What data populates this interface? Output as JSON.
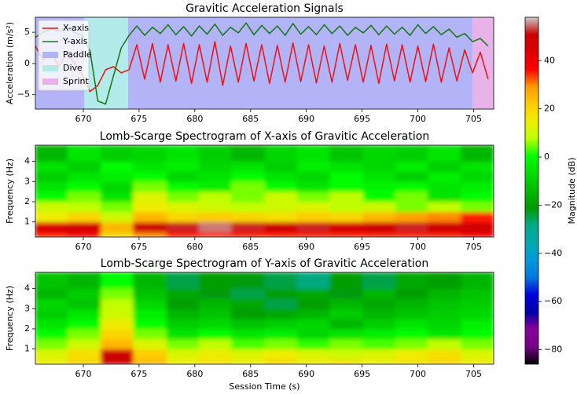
{
  "chart_data": [
    {
      "type": "line",
      "title": "Gravitic Acceleration Signals",
      "ylabel": "Acceleration (m/s²)",
      "x": [
        665.7,
        666.4,
        667.1,
        667.8,
        668.5,
        669.2,
        669.9,
        670.6,
        671.3,
        672.0,
        672.7,
        673.4,
        674.1,
        674.8,
        675.5,
        676.2,
        676.9,
        677.6,
        678.3,
        679.0,
        679.7,
        680.4,
        681.1,
        681.8,
        682.5,
        683.2,
        683.9,
        684.6,
        685.3,
        686.0,
        686.7,
        687.4,
        688.1,
        688.8,
        689.5,
        690.2,
        690.9,
        691.6,
        692.3,
        693.0,
        693.7,
        694.4,
        695.1,
        695.8,
        696.5,
        697.2,
        697.9,
        698.6,
        699.3,
        700.0,
        700.7,
        701.4,
        702.1,
        702.8,
        703.5,
        704.2,
        704.9,
        705.6,
        706.3
      ],
      "series": [
        {
          "name": "X-axis",
          "color": "#ee1111",
          "values": [
            2.8,
            0.5,
            1.8,
            -0.5,
            1.5,
            0.2,
            -1.8,
            -4.5,
            -3.5,
            -1.0,
            -0.5,
            -1.5,
            -1.0,
            3.0,
            -2.5,
            3.2,
            -3.0,
            3.0,
            -2.8,
            3.2,
            -3.2,
            3.0,
            -3.0,
            3.5,
            -3.5,
            2.8,
            -3.0,
            3.2,
            -2.8,
            3.0,
            -3.2,
            2.9,
            -3.0,
            3.3,
            -2.9,
            3.0,
            -3.1,
            2.8,
            -3.0,
            3.2,
            -2.7,
            3.0,
            -3.0,
            2.9,
            -3.2,
            3.1,
            -2.8,
            3.0,
            -3.0,
            2.8,
            -2.9,
            3.1,
            -3.0,
            2.5,
            -2.8,
            2.2,
            -1.5,
            1.8,
            -2.5
          ]
        },
        {
          "name": "Y-axis",
          "color": "#117711",
          "values": [
            4.2,
            5.0,
            5.5,
            5.2,
            5.8,
            5.0,
            4.5,
            2.0,
            -6.0,
            -6.5,
            -2.0,
            2.5,
            4.5,
            6.0,
            4.5,
            5.8,
            4.8,
            6.2,
            4.6,
            5.9,
            4.4,
            6.0,
            4.7,
            6.3,
            4.5,
            5.8,
            4.9,
            6.5,
            4.6,
            6.1,
            4.8,
            6.0,
            4.5,
            6.4,
            4.7,
            5.9,
            4.6,
            6.2,
            4.8,
            6.0,
            4.5,
            5.8,
            4.9,
            6.1,
            4.6,
            6.0,
            4.7,
            5.8,
            4.5,
            6.2,
            4.8,
            5.9,
            4.6,
            5.5,
            4.2,
            4.8,
            3.5,
            4.0,
            2.8
          ]
        }
      ],
      "regions": [
        {
          "name": "Paddle",
          "color": "#b3b3f8",
          "intervals": [
            [
              665.7,
              670.1
            ],
            [
              674.0,
              704.9
            ]
          ]
        },
        {
          "name": "Dive",
          "color": "#b3eaea",
          "intervals": [
            [
              670.1,
              674.0
            ]
          ]
        },
        {
          "name": "Sprint",
          "color": "#e8b3e8",
          "intervals": [
            [
              704.9,
              706.8
            ]
          ]
        }
      ],
      "legend": "upper left",
      "xlim": [
        665.7,
        706.8
      ],
      "ylim": [
        -7.3,
        7.4
      ],
      "xticks": [
        670,
        675,
        680,
        685,
        690,
        695,
        700,
        705
      ],
      "yticks": [
        {
          "value": -5,
          "label": "−5"
        },
        0,
        5
      ]
    },
    {
      "type": "heatmap",
      "title": "Lomb-Scarge Spectrogram of X-axis of Gravitic Acceleration",
      "ylabel": "Frequency (Hz)",
      "xbins": [
        665.7,
        668.6,
        671.6,
        674.5,
        677.5,
        680.4,
        683.3,
        686.3,
        689.2,
        692.1,
        695.1,
        698.0,
        700.9,
        703.9,
        706.8
      ],
      "ybins": [
        0.25,
        0.5,
        1.0,
        1.5,
        2.0,
        2.5,
        3.0,
        3.5,
        4.0,
        4.8
      ],
      "z": [
        [
          35,
          38,
          20,
          30,
          35,
          35,
          35,
          35,
          35,
          35,
          35,
          35,
          35,
          40
        ],
        [
          45,
          48,
          25,
          50,
          52,
          55,
          52,
          50,
          52,
          48,
          50,
          52,
          50,
          48
        ],
        [
          15,
          20,
          10,
          25,
          20,
          22,
          20,
          18,
          22,
          20,
          25,
          28,
          30,
          35
        ],
        [
          10,
          8,
          5,
          15,
          12,
          10,
          8,
          10,
          12,
          8,
          10,
          5,
          8,
          5
        ],
        [
          0,
          5,
          -5,
          12,
          5,
          8,
          5,
          10,
          5,
          8,
          0,
          5,
          -5,
          0
        ],
        [
          -5,
          0,
          -8,
          5,
          0,
          -3,
          5,
          0,
          -5,
          0,
          -2,
          0,
          -5,
          -3
        ],
        [
          -10,
          -5,
          -3,
          0,
          -8,
          -5,
          0,
          -5,
          -8,
          0,
          -5,
          -10,
          -3,
          -8
        ],
        [
          -5,
          -10,
          0,
          -5,
          -3,
          -8,
          -5,
          -10,
          -3,
          -5,
          -8,
          -3,
          -10,
          -5
        ],
        [
          -15,
          -5,
          -10,
          -8,
          -5,
          -10,
          -15,
          -8,
          -5,
          -12,
          -8,
          -10,
          -5,
          -15
        ]
      ],
      "xlim": [
        665.7,
        706.8
      ],
      "ylim": [
        0.25,
        4.8
      ],
      "xticks": [
        670,
        675,
        680,
        685,
        690,
        695,
        700,
        705
      ],
      "yticks": [
        1,
        2,
        3,
        4
      ]
    },
    {
      "type": "heatmap",
      "title": "Lomb-Scarge Spectrogram of Y-axis of Gravitic Acceleration",
      "ylabel": "Frequency (Hz)",
      "xlabel": "Session Time (s)",
      "xbins": [
        665.7,
        668.6,
        671.6,
        674.5,
        677.5,
        680.4,
        683.3,
        686.3,
        689.2,
        692.1,
        695.1,
        698.0,
        700.9,
        703.9,
        706.8
      ],
      "ybins": [
        0.25,
        0.5,
        1.0,
        1.5,
        2.0,
        2.5,
        3.0,
        3.5,
        4.0,
        4.8
      ],
      "z": [
        [
          15,
          20,
          50,
          25,
          15,
          18,
          15,
          20,
          15,
          18,
          15,
          18,
          20,
          15
        ],
        [
          12,
          18,
          50,
          22,
          12,
          15,
          12,
          15,
          12,
          10,
          12,
          15,
          18,
          12
        ],
        [
          5,
          10,
          25,
          12,
          5,
          8,
          3,
          5,
          2,
          5,
          3,
          5,
          8,
          5
        ],
        [
          0,
          5,
          20,
          5,
          -5,
          0,
          -5,
          -3,
          -8,
          -5,
          -3,
          0,
          -5,
          0
        ],
        [
          -5,
          0,
          15,
          0,
          -10,
          -8,
          -12,
          -10,
          -8,
          -15,
          -10,
          -5,
          -8,
          -3
        ],
        [
          -10,
          -5,
          10,
          -3,
          -15,
          -12,
          -20,
          -18,
          -15,
          -10,
          -15,
          -12,
          -10,
          -8
        ],
        [
          -8,
          -12,
          8,
          -8,
          -20,
          -15,
          -18,
          -25,
          -20,
          -15,
          -18,
          -15,
          -12,
          -10
        ],
        [
          -15,
          -10,
          5,
          -12,
          -18,
          -22,
          -25,
          -20,
          -18,
          -22,
          -15,
          -20,
          -15,
          -12
        ],
        [
          -12,
          -15,
          0,
          -15,
          -25,
          -20,
          -22,
          -25,
          -28,
          -20,
          -25,
          -18,
          -20,
          -15
        ]
      ],
      "xlim": [
        665.7,
        706.8
      ],
      "ylim": [
        0.25,
        4.8
      ],
      "xticks": [
        670,
        675,
        680,
        685,
        690,
        695,
        700,
        705
      ],
      "yticks": [
        1,
        2,
        3,
        4
      ]
    },
    {
      "type": "colorbar",
      "label": "Magnitude (dB)",
      "colormap": "nipy_spectral",
      "lim": [
        -86,
        58
      ],
      "ticks": [
        {
          "value": -80,
          "label": "−80"
        },
        {
          "value": -60,
          "label": "−60"
        },
        {
          "value": -40,
          "label": "−40"
        },
        {
          "value": -20,
          "label": "−20"
        },
        0,
        20,
        40
      ]
    }
  ]
}
